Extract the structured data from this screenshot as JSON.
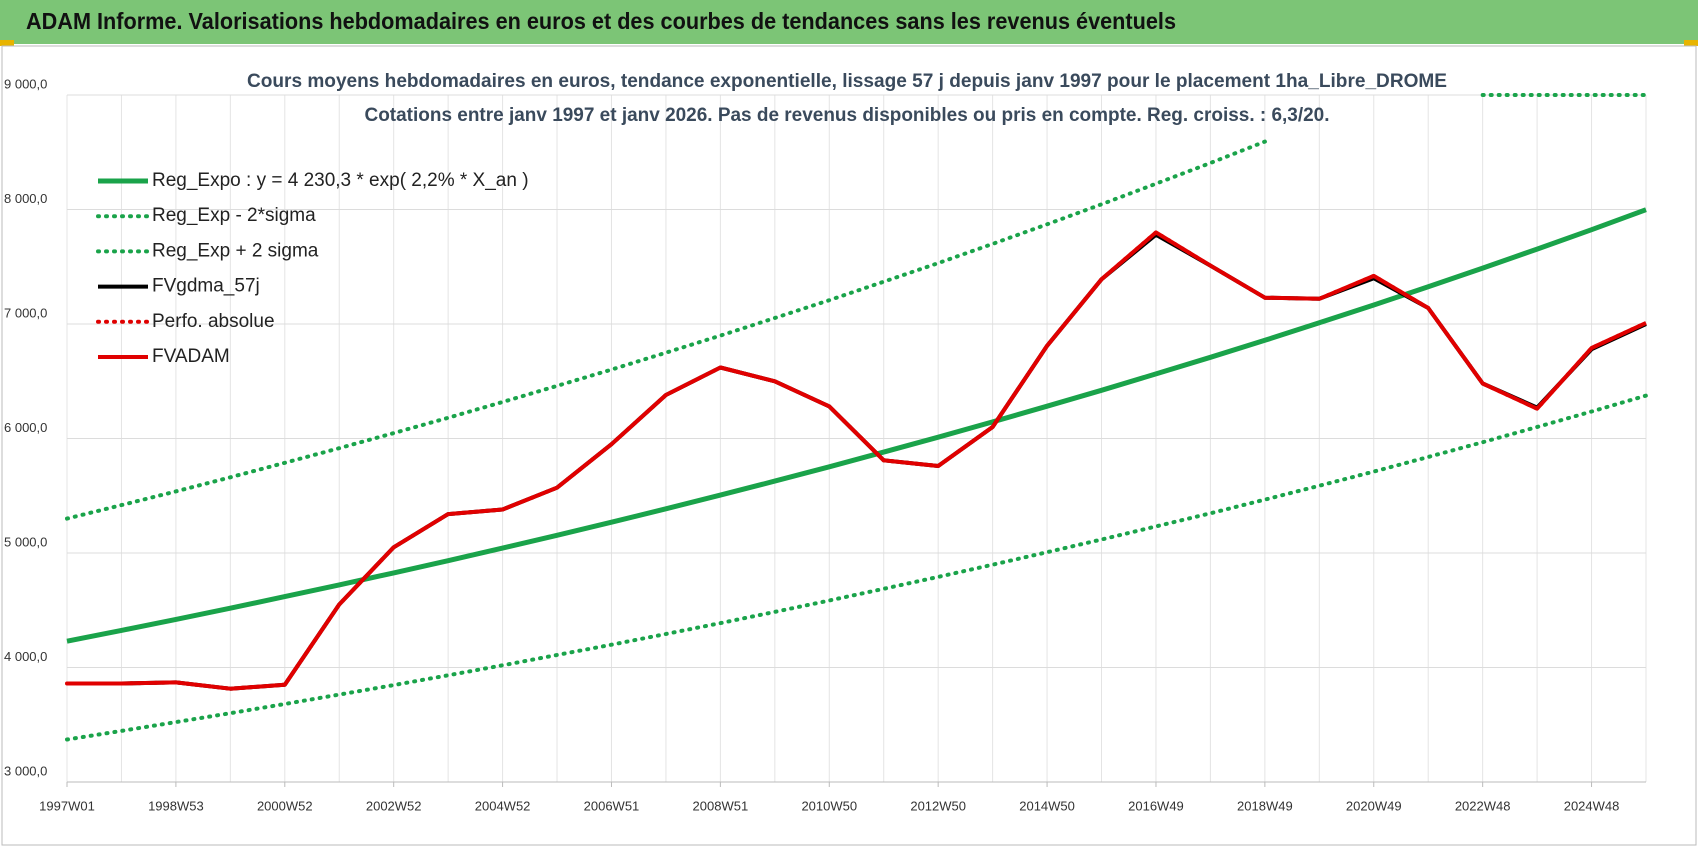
{
  "header": {
    "title": "ADAM Informe. Valorisations hebdomadaires en euros et des courbes de tendances sans les revenus éventuels"
  },
  "chart_data": {
    "type": "line",
    "title": "Cours moyens  hebdomadaires en euros, tendance exponentielle, lissage 57 j depuis janv 1997 pour le placement 1ha_Libre_DROME",
    "subtitle": "Cotations entre janv 1997 et janv 2026. Pas de revenus disponibles ou pris  en compte. Reg. croiss. : 6,3/20.",
    "categories": [
      "1997W01",
      null,
      "1998W53",
      null,
      "2000W52",
      null,
      "2002W52",
      null,
      "2004W52",
      null,
      "2006W51",
      null,
      "2008W51",
      null,
      "2010W50",
      null,
      "2012W50",
      null,
      "2014W50",
      null,
      "2016W49",
      null,
      "2018W49",
      null,
      "2020W49",
      null,
      "2022W48",
      null,
      "2024W48",
      null
    ],
    "ylim": [
      3000,
      9000
    ],
    "yticks": [
      {
        "value": 3000,
        "label": "3 000,0"
      },
      {
        "value": 4000,
        "label": "4 000,0"
      },
      {
        "value": 5000,
        "label": "5 000,0"
      },
      {
        "value": 6000,
        "label": "6 000,0"
      },
      {
        "value": 7000,
        "label": "7 000,0"
      },
      {
        "value": 8000,
        "label": "8 000,0"
      },
      {
        "value": 9000,
        "label": "9 000,0"
      }
    ],
    "grid": true,
    "legend": "top-left",
    "series": [
      {
        "name": "Reg_Expo : y = 4 230,3 * exp( 2,2% *  X_an )",
        "color": "#1aa34a",
        "line_style": "solid",
        "values": [
          4230,
          4324,
          4420,
          4518,
          4619,
          4721,
          4826,
          4933,
          5043,
          5155,
          5269,
          5386,
          5506,
          5628,
          5753,
          5881,
          6011,
          6145,
          6282,
          6421,
          6564,
          6709,
          6858,
          7011,
          7166,
          7325,
          7488,
          7654,
          7824,
          7998
        ]
      },
      {
        "name": "Reg_Exp - 2*sigma",
        "color": "#1aa34a",
        "line_style": "dotted",
        "values": [
          3371,
          3446,
          3523,
          3601,
          3681,
          3763,
          3846,
          3932,
          4019,
          4109,
          4199,
          4293,
          4388,
          4486,
          4585,
          4687,
          4791,
          4898,
          5007,
          5118,
          5232,
          5347,
          5466,
          5588,
          5711,
          5838,
          5968,
          6100,
          6236,
          6375
        ]
      },
      {
        "name": "Reg_Exp + 2 sigma",
        "color": "#1aa34a",
        "line_style": "dotted",
        "values": [
          5300,
          5418,
          5538,
          5661,
          5788,
          5915,
          6047,
          6181,
          6319,
          6459,
          6602,
          6749,
          6899,
          7052,
          7208,
          7369,
          7532,
          7700,
          7871,
          8045,
          8225,
          8406,
          8593,
          null,
          null,
          null,
          9000,
          9000,
          9000,
          9000
        ]
      },
      {
        "name": "FVgdma_57j",
        "color": "#000000",
        "line_style": "solid",
        "values": [
          3860,
          3860,
          3870,
          3815,
          3850,
          4550,
          5050,
          5340,
          5380,
          5570,
          5950,
          6380,
          6620,
          6500,
          6280,
          5810,
          5760,
          6100,
          6810,
          7390,
          7780,
          7510,
          7230,
          7220,
          7400,
          7140,
          6480,
          6270,
          6780,
          7000
        ]
      },
      {
        "name": "Perfo. absolue",
        "color": "#e00000",
        "line_style": "dotted",
        "values": [
          3860,
          3860,
          3870,
          3815,
          3850,
          4550,
          5050,
          5340,
          5380,
          5570,
          5950,
          6380,
          6620,
          6500,
          6280,
          5810,
          5760,
          6100,
          6810,
          7390,
          7800,
          7510,
          7230,
          7220,
          7420,
          7140,
          6480,
          6260,
          6790,
          7010
        ]
      },
      {
        "name": "FVADAM",
        "color": "#e00000",
        "line_style": "solid",
        "values": [
          3860,
          3860,
          3870,
          3815,
          3850,
          4550,
          5050,
          5340,
          5380,
          5570,
          5950,
          6380,
          6620,
          6500,
          6280,
          5810,
          5760,
          6100,
          6810,
          7390,
          7800,
          7510,
          7230,
          7220,
          7420,
          7140,
          6480,
          6260,
          6790,
          7010
        ]
      }
    ]
  }
}
